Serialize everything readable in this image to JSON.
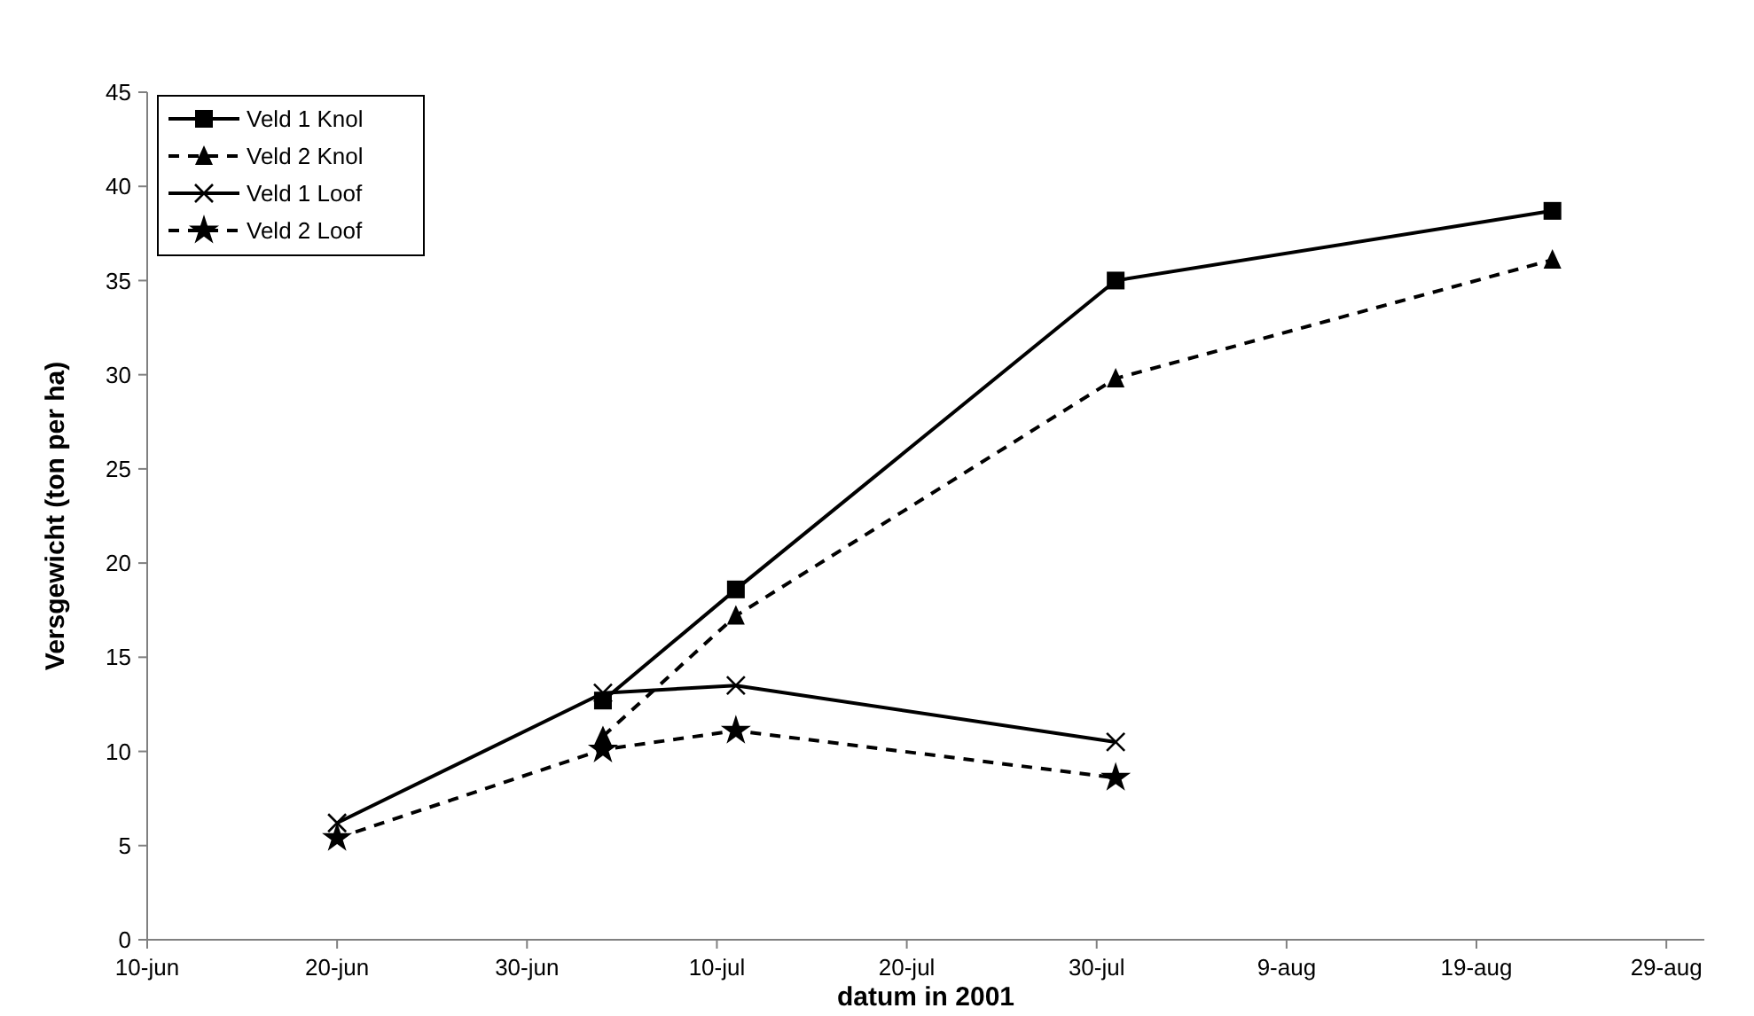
{
  "chart_data": {
    "type": "line",
    "xlabel": "datum in 2001",
    "ylabel": "Versgewicht (ton per ha)",
    "xlim": [
      "2001-06-10",
      "2001-08-31"
    ],
    "xticks": [
      {
        "value": "2001-06-10",
        "label": "10-jun"
      },
      {
        "value": "2001-06-20",
        "label": "20-jun"
      },
      {
        "value": "2001-06-30",
        "label": "30-jun"
      },
      {
        "value": "2001-07-10",
        "label": "10-jul"
      },
      {
        "value": "2001-07-20",
        "label": "20-jul"
      },
      {
        "value": "2001-07-30",
        "label": "30-jul"
      },
      {
        "value": "2001-08-09",
        "label": "9-aug"
      },
      {
        "value": "2001-08-19",
        "label": "19-aug"
      },
      {
        "value": "2001-08-29",
        "label": "29-aug"
      }
    ],
    "ylim": [
      0,
      45
    ],
    "yticks": [
      0,
      5,
      10,
      15,
      20,
      25,
      30,
      35,
      40,
      45
    ],
    "grid": false,
    "legend": "top left",
    "series": [
      {
        "name": "Veld 1 Knol",
        "color": "#000000",
        "marker": "square",
        "line_style": "solid",
        "x": [
          "2001-07-04",
          "2001-07-11",
          "2001-07-31",
          "2001-08-23"
        ],
        "values": [
          12.7,
          18.6,
          35.0,
          38.7
        ]
      },
      {
        "name": "Veld 2 Knol",
        "color": "#000000",
        "marker": "triangle",
        "line_style": "dashed",
        "x": [
          "2001-07-04",
          "2001-07-11",
          "2001-07-31",
          "2001-08-23"
        ],
        "values": [
          10.8,
          17.2,
          29.8,
          36.1
        ]
      },
      {
        "name": "Veld 1 Loof",
        "color": "#000000",
        "marker": "cross",
        "line_style": "solid",
        "x": [
          "2001-06-20",
          "2001-07-04",
          "2001-07-11",
          "2001-07-31"
        ],
        "values": [
          6.2,
          13.1,
          13.5,
          10.5
        ]
      },
      {
        "name": "Veld 2 Loof",
        "color": "#000000",
        "marker": "star",
        "line_style": "dashed",
        "x": [
          "2001-06-20",
          "2001-07-04",
          "2001-07-11",
          "2001-07-31"
        ],
        "values": [
          5.4,
          10.1,
          11.1,
          8.6
        ]
      }
    ]
  }
}
